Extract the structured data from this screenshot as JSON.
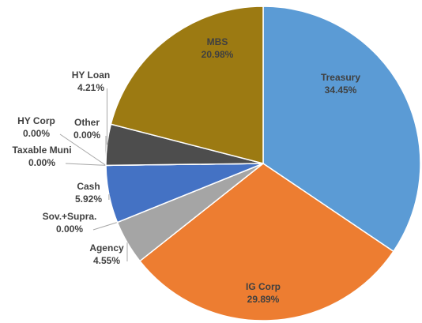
{
  "chart_data": {
    "type": "pie",
    "categories": [
      "Treasury",
      "IG Corp",
      "Agency",
      "Sov.+Supra.",
      "Cash",
      "Taxable Muni",
      "HY Corp",
      "Other",
      "HY Loan",
      "MBS"
    ],
    "values": [
      34.45,
      29.89,
      4.55,
      0.0,
      5.92,
      0.0,
      0.0,
      0.0,
      4.21,
      20.98
    ],
    "value_labels": [
      "34.45%",
      "29.89%",
      "4.55%",
      "0.00%",
      "5.92%",
      "0.00%",
      "0.00%",
      "0.00%",
      "4.21%",
      "20.98%"
    ],
    "colors": [
      "#5b9bd5",
      "#ed7d31",
      "#a5a5a5",
      "#ffc000",
      "#4472c4",
      "#70ad47",
      "#255e91",
      "#636363",
      "#4d4d4d",
      "#9c7a12"
    ]
  }
}
